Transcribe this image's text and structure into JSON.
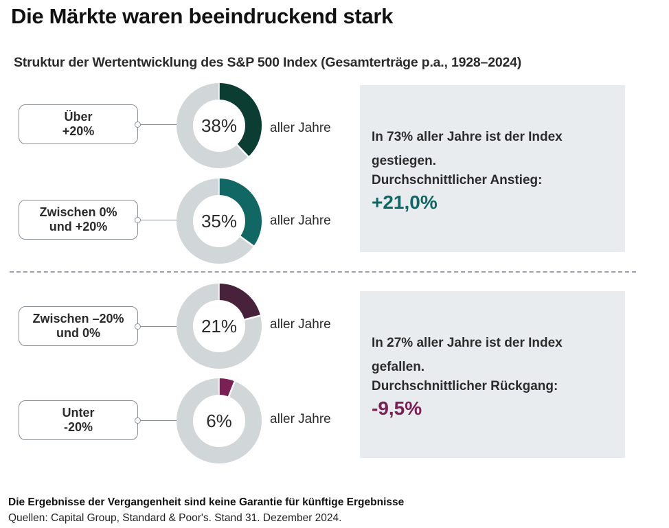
{
  "title": "Die Märkte waren beeindruckend stark",
  "subtitle": "Struktur der Wertentwicklung des S&P 500 Index (Gesamterträge p.a., 1928–2024)",
  "colors": {
    "track": "#d1d6d9",
    "over20": "#0b3d33",
    "between0and20": "#116763",
    "between_minus20and0": "#48213a",
    "under_minus20": "#7b2055",
    "positive_accent": "#116763",
    "negative_accent": "#7b2055",
    "info_bg": "#e9ecef"
  },
  "chart_data": {
    "type": "pie",
    "title": "Struktur der Wertentwicklung des S&P 500 Index (Gesamterträge p.a., 1928–2024)",
    "series": [
      {
        "name": "Über +20%",
        "label_lines": [
          "Über",
          "+20%"
        ],
        "value": 38,
        "display": "38%",
        "caption": "aller Jahre",
        "color": "#0b3d33"
      },
      {
        "name": "Zwischen 0% und +20%",
        "label_lines": [
          "Zwischen 0%",
          "und +20%"
        ],
        "value": 35,
        "display": "35%",
        "caption": "aller Jahre",
        "color": "#116763"
      },
      {
        "name": "Zwischen -20% und 0%",
        "label_lines": [
          "Zwischen –20%",
          "und 0%"
        ],
        "value": 21,
        "display": "21%",
        "caption": "aller Jahre",
        "color": "#48213a"
      },
      {
        "name": "Unter -20%",
        "label_lines": [
          "Unter",
          "-20%"
        ],
        "value": 6,
        "display": "6%",
        "caption": "aller Jahre",
        "color": "#7b2055"
      }
    ],
    "unit": "% aller Jahre"
  },
  "info_boxes": [
    {
      "text": "In 73% aller Jahre ist der Index gestiegen.",
      "label": "Durchschnittlicher Anstieg:",
      "value": "+21,0%",
      "value_color": "#116763"
    },
    {
      "text": "In 27% aller Jahre ist der Index gefallen.",
      "label": "Durchschnittlicher Rückgang:",
      "value": "-9,5%",
      "value_color": "#7b2055"
    }
  ],
  "footer": {
    "disclaimer": "Die Ergebnisse der Vergangenheit sind keine Garantie für künftige Ergebnisse",
    "sources": "Quellen: Capital Group, Standard & Poor's. Stand 31. Dezember 2024."
  }
}
